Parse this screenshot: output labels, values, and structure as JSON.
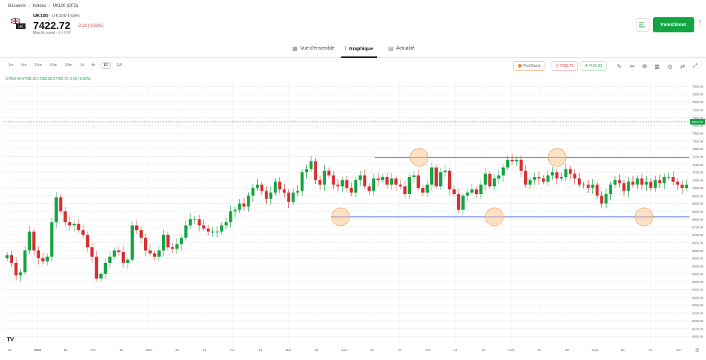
{
  "breadcrumb": [
    "Découvrir",
    "Indices",
    "UK100 (CFD)"
  ],
  "instrument": {
    "symbol": "UK100",
    "name": "UK100 Index",
    "flag_label": "UK",
    "price": "7422.72",
    "change": "-2.18 (-0.03%)",
    "market_status": "Marché ouvert",
    "currency_note": "• EN GBP"
  },
  "header": {
    "invest_label": "Investissez"
  },
  "tabs": [
    {
      "label": "Vue d'ensemble",
      "icon": "grid-icon"
    },
    {
      "label": "Graphique",
      "icon": "chart-icon",
      "active": true
    },
    {
      "label": "Actualité",
      "icon": "news-icon"
    }
  ],
  "timeframes": [
    "1m",
    "5m",
    "10m",
    "15m",
    "30m",
    "1h",
    "4h",
    "1D",
    "1W"
  ],
  "active_timeframe": "1D",
  "toolbar": {
    "prochart_label": "ProCharts",
    "sell_label": "V 7422.72",
    "buy_label": "A 7424.22"
  },
  "ohlc_line": {
    "open": "7419.45",
    "high": "7431.26",
    "low": "7393.95",
    "close": "7422.72",
    "change": "-2.18 (-0.03%)"
  },
  "colors": {
    "up": "#13a541",
    "down": "#d63031",
    "resistance": "#3f5bd9",
    "highlight": "#f7c48b",
    "invest": "#13a541"
  },
  "chart_data": {
    "type": "candlestick",
    "ylim": [
      6000,
      7700
    ],
    "y_ticks": [
      7650,
      7600,
      7550,
      7500,
      7450,
      7400,
      7350,
      7300,
      7250,
      7200,
      7150,
      7100,
      7050,
      7000,
      6950,
      6900,
      6850,
      6800,
      6750,
      6700,
      6650,
      6600,
      6550,
      6500,
      6450,
      6400,
      6350,
      6300,
      6250,
      6200,
      6150,
      6100,
      6050
    ],
    "x_labels": [
      "21",
      "2021",
      "13",
      "Fév",
      "15",
      "Mars",
      "10",
      "19",
      "Avr",
      "16",
      "Mai",
      "13",
      "Juin",
      "13",
      "21",
      "Juil",
      "12",
      "22",
      "Août",
      "11",
      "20",
      "Sept",
      "10",
      "21",
      "Oct"
    ],
    "current_price_label": "7422.72",
    "resistance_level": 7195,
    "support_level": 6815,
    "candles_close": [
      6570,
      6520,
      6440,
      6460,
      6600,
      6720,
      6600,
      6550,
      6530,
      6560,
      6780,
      6940,
      6850,
      6780,
      6760,
      6770,
      6730,
      6700,
      6620,
      6560,
      6420,
      6450,
      6520,
      6560,
      6600,
      6590,
      6520,
      6540,
      6760,
      6730,
      6680,
      6600,
      6580,
      6560,
      6600,
      6700,
      6620,
      6610,
      6640,
      6680,
      6760,
      6800,
      6800,
      6760,
      6740,
      6720,
      6720,
      6720,
      6760,
      6780,
      6850,
      6860,
      6900,
      6880,
      6950,
      7000,
      7020,
      6980,
      6930,
      6970,
      7040,
      6990,
      6970,
      6910,
      6970,
      6980,
      7100,
      7120,
      7170,
      7050,
      7020,
      7110,
      7080,
      7020,
      7010,
      7050,
      7000,
      6970,
      7050,
      7080,
      7010,
      6980,
      7060,
      7050,
      7070,
      7020,
      7060,
      7020,
      7010,
      6960,
      7070,
      7080,
      7000,
      6970,
      7020,
      7130,
      7010,
      7100,
      7110,
      6990,
      6960,
      6860,
      6950,
      6970,
      6990,
      6960,
      7020,
      7090,
      7010,
      7060,
      7080,
      7130,
      7180,
      7170,
      7180,
      7110,
      7020,
      7050,
      7070,
      7060,
      7040,
      7080,
      7100,
      7060,
      7070,
      7120,
      7090,
      7060,
      7020,
      7020,
      7000,
      7020,
      6950,
      6900,
      6960,
      7020,
      7050,
      7030,
      6980,
      7040,
      7020,
      7060,
      7020,
      7040,
      7000,
      7050,
      7030,
      7070,
      7070,
      7040,
      7020,
      7000,
      7020
    ]
  }
}
